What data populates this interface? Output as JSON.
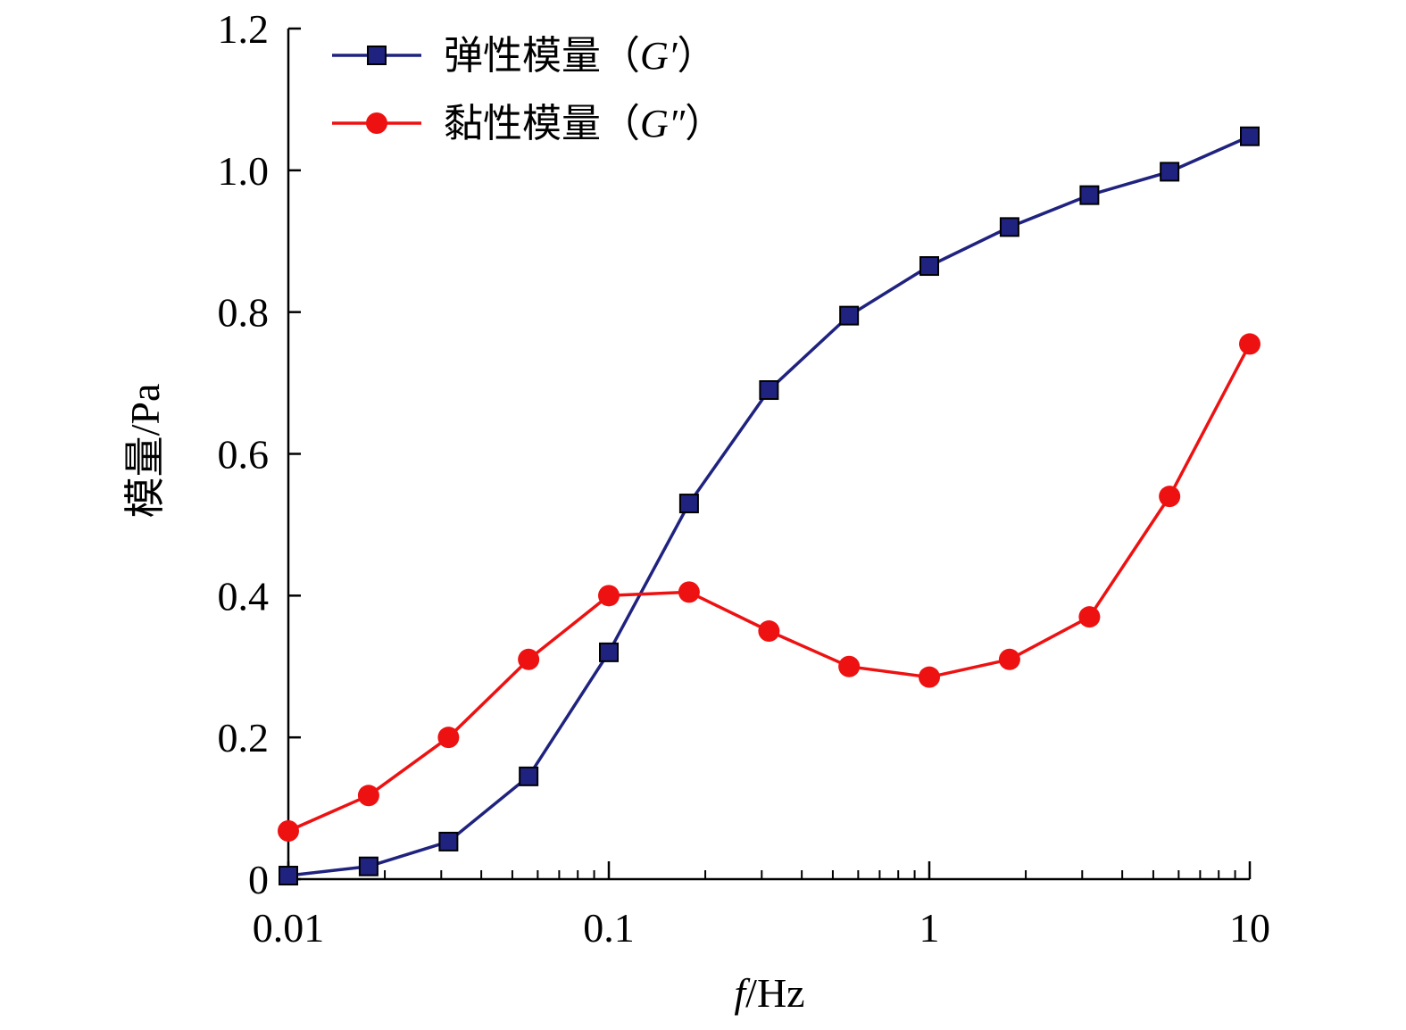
{
  "chart_data": {
    "type": "line",
    "x_scale": "log",
    "xlim": [
      0.01,
      10
    ],
    "ylim": [
      0,
      1.2
    ],
    "xlabel": {
      "italic": "f",
      "rest": "/Hz"
    },
    "ylabel": "模量/Pa",
    "x_ticks": [
      {
        "value": 0.01,
        "label": "0.01"
      },
      {
        "value": 0.1,
        "label": "0.1"
      },
      {
        "value": 1,
        "label": "1"
      },
      {
        "value": 10,
        "label": "10"
      }
    ],
    "y_ticks": [
      {
        "value": 0,
        "label": "0"
      },
      {
        "value": 0.2,
        "label": "0.2"
      },
      {
        "value": 0.4,
        "label": "0.4"
      },
      {
        "value": 0.6,
        "label": "0.6"
      },
      {
        "value": 0.8,
        "label": "0.8"
      },
      {
        "value": 1.0,
        "label": "1.0"
      },
      {
        "value": 1.2,
        "label": "1.2"
      }
    ],
    "legend_position": "top-left",
    "grid": false,
    "series": [
      {
        "name": "弹性模量（G′）",
        "legend_prefix": "弹性模量（",
        "legend_symbol": "G′",
        "legend_suffix": "）",
        "color": "#1f237f",
        "marker": "square",
        "x": [
          0.01,
          0.0178,
          0.0316,
          0.0562,
          0.1,
          0.178,
          0.316,
          0.562,
          1,
          1.78,
          3.16,
          5.62,
          10
        ],
        "y": [
          0.005,
          0.018,
          0.053,
          0.145,
          0.32,
          0.53,
          0.69,
          0.795,
          0.865,
          0.92,
          0.965,
          0.998,
          1.048
        ]
      },
      {
        "name": "黏性模量（G″）",
        "legend_prefix": "黏性模量（",
        "legend_symbol": "G″",
        "legend_suffix": "）",
        "color": "#ee1111",
        "marker": "circle",
        "x": [
          0.01,
          0.0178,
          0.0316,
          0.0562,
          0.1,
          0.178,
          0.316,
          0.562,
          1,
          1.78,
          3.16,
          5.62,
          10
        ],
        "y": [
          0.068,
          0.118,
          0.2,
          0.31,
          0.4,
          0.405,
          0.35,
          0.3,
          0.285,
          0.31,
          0.37,
          0.54,
          0.755
        ]
      }
    ]
  }
}
